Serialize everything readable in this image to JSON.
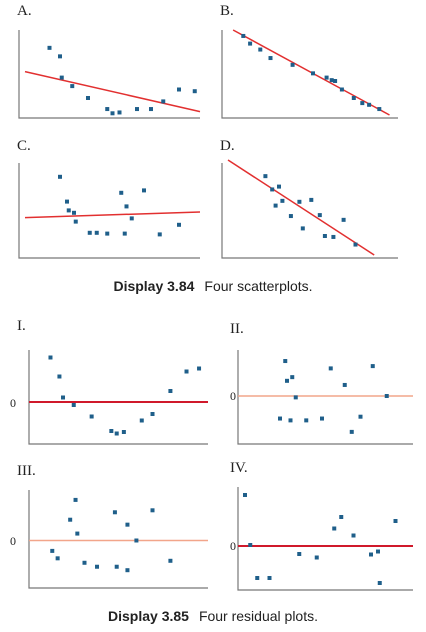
{
  "display_84": {
    "number": "Display 3.84",
    "text": "Four scatterplots."
  },
  "display_85": {
    "number": "Display 3.85",
    "text": "Four residual plots."
  },
  "colors": {
    "point": "#1f5f8a",
    "fit_line": "#e23030",
    "zero_line_dark": "#d0192b",
    "zero_line_light": "#f2a58a",
    "axis": "#777777"
  },
  "chart_data": [
    {
      "type": "scatter",
      "panel": "A.",
      "xlim": [
        0,
        100
      ],
      "ylim": [
        0,
        100
      ],
      "points": [
        [
          14,
          79
        ],
        [
          20,
          69
        ],
        [
          21,
          44
        ],
        [
          27,
          34
        ],
        [
          36,
          20
        ],
        [
          47,
          7
        ],
        [
          50,
          2
        ],
        [
          54,
          3
        ],
        [
          64,
          7
        ],
        [
          72,
          7
        ],
        [
          79,
          16
        ],
        [
          88,
          30
        ],
        [
          97,
          28
        ]
      ],
      "line": [
        [
          0,
          51
        ],
        [
          100,
          4
        ]
      ]
    },
    {
      "type": "scatter",
      "panel": "B.",
      "xlim": [
        0,
        100
      ],
      "ylim": [
        0,
        100
      ],
      "points": [
        [
          9,
          93
        ],
        [
          13,
          84
        ],
        [
          19,
          77
        ],
        [
          25,
          67
        ],
        [
          38,
          59
        ],
        [
          50,
          49
        ],
        [
          58,
          44
        ],
        [
          61,
          41
        ],
        [
          63,
          40
        ],
        [
          67,
          30
        ],
        [
          74,
          20
        ],
        [
          79,
          14
        ],
        [
          83,
          12
        ],
        [
          89,
          7
        ]
      ],
      "line": [
        [
          3,
          100
        ],
        [
          95,
          0
        ]
      ]
    },
    {
      "type": "scatter",
      "panel": "C.",
      "xlim": [
        0,
        100
      ],
      "ylim": [
        0,
        100
      ],
      "points": [
        [
          20,
          89
        ],
        [
          24,
          58
        ],
        [
          25,
          47
        ],
        [
          28,
          44
        ],
        [
          29,
          33
        ],
        [
          37,
          19
        ],
        [
          41,
          19
        ],
        [
          47,
          18
        ],
        [
          55,
          69
        ],
        [
          58,
          52
        ],
        [
          57,
          18
        ],
        [
          61,
          37
        ],
        [
          68,
          72
        ],
        [
          77,
          17
        ],
        [
          88,
          29
        ]
      ],
      "line": [
        [
          0,
          38
        ],
        [
          100,
          45
        ]
      ]
    },
    {
      "type": "scatter",
      "panel": "D.",
      "xlim": [
        0,
        100
      ],
      "ylim": [
        0,
        100
      ],
      "points": [
        [
          22,
          83
        ],
        [
          26,
          69
        ],
        [
          30,
          72
        ],
        [
          28,
          52
        ],
        [
          32,
          57
        ],
        [
          37,
          41
        ],
        [
          42,
          56
        ],
        [
          44,
          28
        ],
        [
          49,
          58
        ],
        [
          54,
          42
        ],
        [
          57,
          20
        ],
        [
          62,
          19
        ],
        [
          68,
          37
        ],
        [
          75,
          11
        ]
      ],
      "line": [
        [
          0,
          100
        ],
        [
          86,
          0
        ]
      ]
    },
    {
      "type": "scatter",
      "panel": "I.",
      "ylabel": "0",
      "xlim": [
        0,
        100
      ],
      "ylim": [
        -100,
        100
      ],
      "zero_line": "dark",
      "points": [
        [
          12,
          89
        ],
        [
          17,
          51
        ],
        [
          19,
          9
        ],
        [
          25,
          -6
        ],
        [
          35,
          -29
        ],
        [
          46,
          -58
        ],
        [
          49,
          -63
        ],
        [
          53,
          -60
        ],
        [
          63,
          -37
        ],
        [
          69,
          -24
        ],
        [
          79,
          22
        ],
        [
          88,
          61
        ],
        [
          95,
          67
        ]
      ]
    },
    {
      "type": "scatter",
      "panel": "II.",
      "ylabel": "0",
      "xlim": [
        0,
        100
      ],
      "ylim": [
        -100,
        100
      ],
      "zero_line": "light",
      "points": [
        [
          27,
          76
        ],
        [
          28,
          33
        ],
        [
          31,
          41
        ],
        [
          24,
          -49
        ],
        [
          30,
          -53
        ],
        [
          33,
          -3
        ],
        [
          39,
          -53
        ],
        [
          48,
          -49
        ],
        [
          53,
          60
        ],
        [
          61,
          24
        ],
        [
          65,
          -78
        ],
        [
          70,
          -45
        ],
        [
          77,
          65
        ],
        [
          85,
          0
        ]
      ]
    },
    {
      "type": "scatter",
      "panel": "III.",
      "ylabel": "0",
      "xlim": [
        0,
        100
      ],
      "ylim": [
        -100,
        100
      ],
      "zero_line": "light",
      "points": [
        [
          13,
          -21
        ],
        [
          16,
          -36
        ],
        [
          23,
          42
        ],
        [
          26,
          82
        ],
        [
          27,
          14
        ],
        [
          31,
          -45
        ],
        [
          38,
          -53
        ],
        [
          49,
          -53
        ],
        [
          48,
          57
        ],
        [
          55,
          32
        ],
        [
          55,
          -60
        ],
        [
          60,
          0
        ],
        [
          69,
          61
        ],
        [
          79,
          -41
        ]
      ]
    },
    {
      "type": "scatter",
      "panel": "IV.",
      "ylabel": "0",
      "xlim": [
        0,
        100
      ],
      "ylim": [
        -100,
        100
      ],
      "zero_line": "dark",
      "points": [
        [
          4,
          102
        ],
        [
          7,
          2
        ],
        [
          11,
          -64
        ],
        [
          18,
          -64
        ],
        [
          35,
          -16
        ],
        [
          45,
          -23
        ],
        [
          55,
          35
        ],
        [
          59,
          58
        ],
        [
          66,
          21
        ],
        [
          76,
          -17
        ],
        [
          80,
          -11
        ],
        [
          81,
          -74
        ],
        [
          90,
          50
        ]
      ]
    }
  ]
}
